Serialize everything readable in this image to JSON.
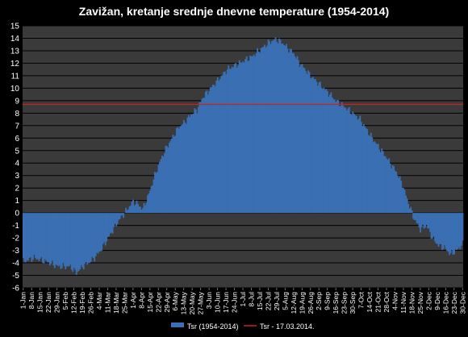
{
  "chart_data": {
    "type": "bar",
    "title": "Zavižan, kretanje srednje dnevne temperature (1954-2014)",
    "xlabel": "",
    "ylabel": "",
    "ylim": [
      -6,
      15
    ],
    "y_ticks": [
      -6,
      -5,
      -4,
      -3,
      -2,
      -1,
      0,
      1,
      2,
      3,
      4,
      5,
      6,
      7,
      8,
      9,
      10,
      11,
      12,
      13,
      14,
      15
    ],
    "x_tick_labels": [
      "1-Jan",
      "8-Jan",
      "15-Jan",
      "22-Jan",
      "29-Jan",
      "5-Feb",
      "12-Feb",
      "19-Feb",
      "26-Feb",
      "4-Mar",
      "11-Mar",
      "18-Mar",
      "25-Mar",
      "1-Apr",
      "8-Apr",
      "15-Apr",
      "22-Apr",
      "29-Apr",
      "6-May",
      "13-May",
      "20-May",
      "27-May",
      "3-Jun",
      "10-Jun",
      "17-Jun",
      "24-Jun",
      "1-Jul",
      "8-Jul",
      "15-Jul",
      "22-Jul",
      "29-Jul",
      "5-Aug",
      "12-Aug",
      "19-Aug",
      "26-Aug",
      "2-Sep",
      "9-Sep",
      "16-Sep",
      "23-Sep",
      "30-Sep",
      "7-Oct",
      "14-Oct",
      "21-Oct",
      "28-Oct",
      "4-Nov",
      "11-Nov",
      "18-Nov",
      "25-Nov",
      "2-Dec",
      "9-Dec",
      "16-Dec",
      "23-Dec",
      "30-Dec"
    ],
    "grid": true,
    "legend_position": "bottom",
    "series": [
      {
        "name": "Tsr (1954-2014)",
        "type": "bar",
        "color": "#3a6fb3",
        "keypoints_day_of_year": [
          1,
          10,
          20,
          30,
          40,
          45,
          50,
          55,
          60,
          65,
          70,
          75,
          80,
          85,
          88,
          92,
          96,
          100,
          105,
          110,
          115,
          120,
          125,
          130,
          135,
          140,
          145,
          150,
          160,
          170,
          180,
          190,
          200,
          205,
          210,
          215,
          220,
          225,
          230,
          240,
          250,
          260,
          270,
          280,
          290,
          300,
          310,
          315,
          320,
          325,
          330,
          335,
          340,
          345,
          350,
          355,
          360,
          365
        ],
        "keypoints_value": [
          -3.9,
          -3.6,
          -3.9,
          -4.3,
          -4.3,
          -4.8,
          -4.3,
          -4.0,
          -3.6,
          -3.0,
          -2.2,
          -1.4,
          -0.6,
          0.0,
          0.4,
          0.9,
          0.7,
          0.3,
          1.5,
          3.0,
          4.3,
          5.3,
          6.1,
          6.9,
          7.3,
          7.9,
          8.3,
          9.3,
          10.4,
          11.5,
          12.0,
          12.5,
          13.3,
          13.7,
          13.9,
          13.7,
          13.2,
          12.8,
          12.0,
          10.9,
          10.0,
          9.0,
          8.3,
          7.5,
          6.0,
          4.7,
          3.3,
          2.3,
          0.8,
          -0.5,
          -1.3,
          -1.0,
          -2.0,
          -2.6,
          -2.8,
          -3.3,
          -3.0,
          -2.5
        ]
      },
      {
        "name": "Tsr - 17.03.2014.",
        "type": "line",
        "color": "#d01f1f",
        "value": 8.7
      }
    ]
  }
}
